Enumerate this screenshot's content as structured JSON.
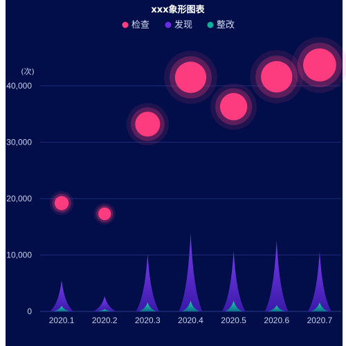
{
  "chart_data": {
    "type": "pictorial",
    "title": "xxx象形图表",
    "y_unit": "(次)",
    "ylim": [
      0,
      45000
    ],
    "y_ticks": [
      0,
      10000,
      20000,
      30000,
      40000
    ],
    "y_tick_labels": [
      "0",
      "10,000",
      "20,000",
      "30,000",
      "40,000"
    ],
    "grid": true,
    "legend_position": "top-center",
    "categories": [
      "2020.1",
      "2020.2",
      "2020.3",
      "2020.4",
      "2020.5",
      "2020.6",
      "2020.7"
    ],
    "series": [
      {
        "name": "检查",
        "symbol": "bubble",
        "color": "#ff3d7f",
        "values": [
          19200,
          17300,
          33200,
          41500,
          36300,
          41600,
          43700
        ]
      },
      {
        "name": "发现",
        "symbol": "spike",
        "color": "#6a2ce0",
        "values": [
          5500,
          2700,
          10200,
          13900,
          10700,
          12600,
          10600
        ]
      },
      {
        "name": "整改",
        "symbol": "spike",
        "color": "#12b09a",
        "values": [
          1000,
          400,
          1600,
          1900,
          1900,
          1100,
          1600
        ]
      }
    ]
  }
}
